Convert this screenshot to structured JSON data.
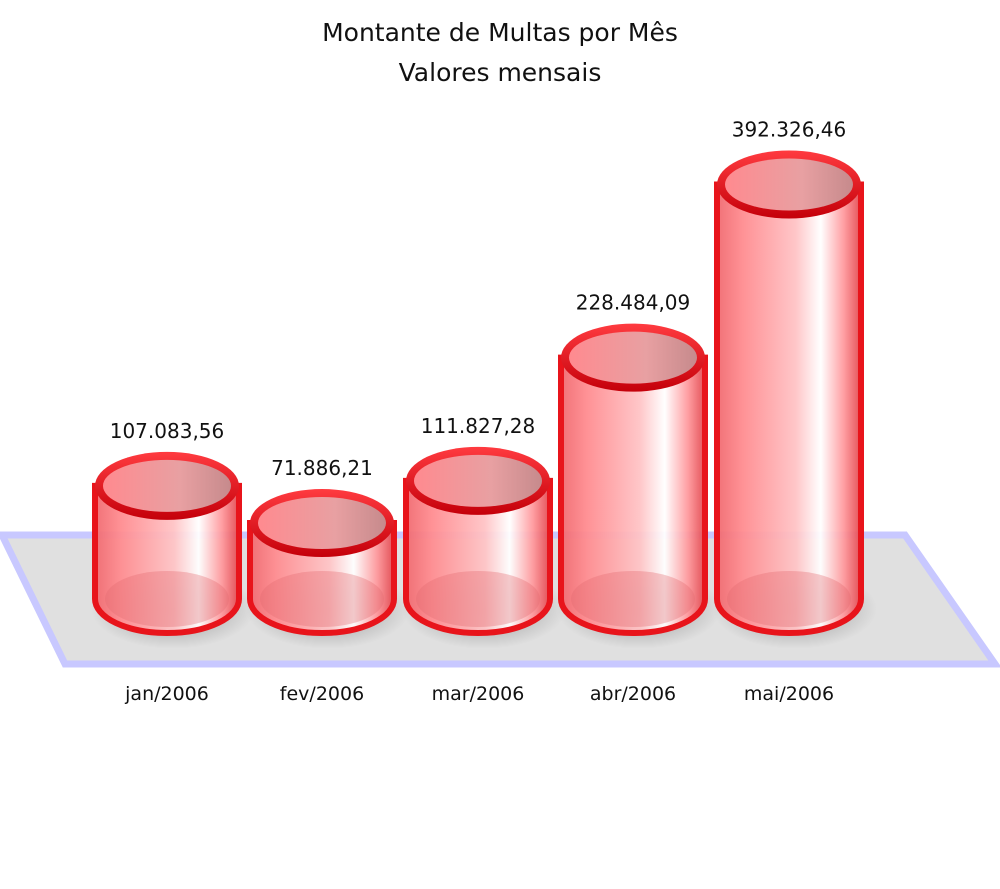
{
  "chart_data": {
    "type": "bar",
    "title": "Montante de Multas por Mês",
    "subtitle": "Valores mensais",
    "categories": [
      "jan/2006",
      "fev/2006",
      "mar/2006",
      "abr/2006",
      "mai/2006"
    ],
    "values": [
      107083.56,
      71886.21,
      111827.28,
      228484.09,
      392326.46
    ],
    "value_labels": [
      "107.083,56",
      "71.886,21",
      "111.827,28",
      "228.484,09",
      "392.326,46"
    ],
    "xlabel": "",
    "ylabel": "",
    "style": "3d-cylinder",
    "grid": false,
    "legend": "none",
    "colors": {
      "cylinder_rim": "#e8141b",
      "cylinder_body": "#ff8a8e",
      "cylinder_highlight": "#ffffff",
      "floor_fill": "#e0e0e0",
      "floor_edge": "#c8c8ff"
    }
  }
}
